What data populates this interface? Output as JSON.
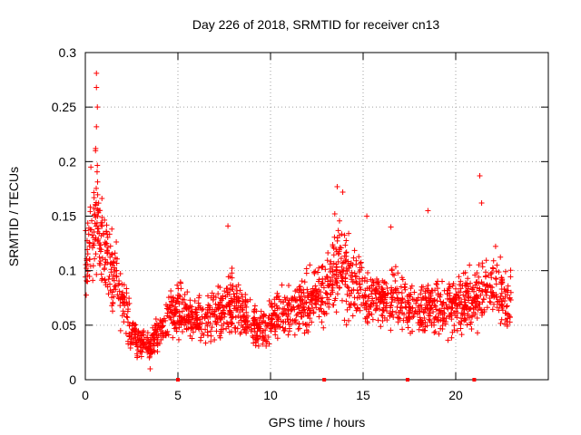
{
  "chart_data": {
    "type": "scatter",
    "title": "Day 226 of 2018, SRMTID for receiver cn13",
    "xlabel": "GPS time / hours",
    "ylabel": "SRMTID / TECUs",
    "xlim": [
      0,
      25
    ],
    "ylim": [
      0,
      0.3
    ],
    "xticks": [
      0,
      5,
      10,
      15,
      20
    ],
    "xtick_labels": [
      "0",
      "5",
      "10",
      "15",
      "20"
    ],
    "yticks": [
      0,
      0.05,
      0.1,
      0.15,
      0.2,
      0.25,
      0.3
    ],
    "ytick_labels": [
      "0",
      "0.05",
      "0.1",
      "0.15",
      "0.2",
      "0.25",
      "0.3"
    ],
    "grid": true,
    "marker": "+",
    "color": "#ff0000",
    "data_gaps_markers_x": [
      5.0,
      12.9,
      17.4,
      21.0
    ],
    "trend_profile": [
      {
        "x": 0.0,
        "y": 0.11
      },
      {
        "x": 0.3,
        "y": 0.13
      },
      {
        "x": 0.6,
        "y": 0.15
      },
      {
        "x": 1.0,
        "y": 0.12
      },
      {
        "x": 1.5,
        "y": 0.1
      },
      {
        "x": 2.0,
        "y": 0.07
      },
      {
        "x": 2.5,
        "y": 0.045
      },
      {
        "x": 3.0,
        "y": 0.035
      },
      {
        "x": 3.5,
        "y": 0.03
      },
      {
        "x": 4.0,
        "y": 0.045
      },
      {
        "x": 4.5,
        "y": 0.06
      },
      {
        "x": 5.0,
        "y": 0.065
      },
      {
        "x": 5.5,
        "y": 0.06
      },
      {
        "x": 6.0,
        "y": 0.055
      },
      {
        "x": 6.5,
        "y": 0.055
      },
      {
        "x": 7.0,
        "y": 0.06
      },
      {
        "x": 7.5,
        "y": 0.065
      },
      {
        "x": 8.0,
        "y": 0.07
      },
      {
        "x": 8.5,
        "y": 0.06
      },
      {
        "x": 9.0,
        "y": 0.05
      },
      {
        "x": 9.5,
        "y": 0.045
      },
      {
        "x": 10.0,
        "y": 0.055
      },
      {
        "x": 10.5,
        "y": 0.06
      },
      {
        "x": 11.0,
        "y": 0.06
      },
      {
        "x": 11.5,
        "y": 0.065
      },
      {
        "x": 12.0,
        "y": 0.07
      },
      {
        "x": 12.5,
        "y": 0.075
      },
      {
        "x": 13.0,
        "y": 0.085
      },
      {
        "x": 13.5,
        "y": 0.105
      },
      {
        "x": 14.0,
        "y": 0.1
      },
      {
        "x": 14.5,
        "y": 0.085
      },
      {
        "x": 15.0,
        "y": 0.075
      },
      {
        "x": 15.5,
        "y": 0.075
      },
      {
        "x": 16.0,
        "y": 0.07
      },
      {
        "x": 16.5,
        "y": 0.075
      },
      {
        "x": 17.0,
        "y": 0.07
      },
      {
        "x": 17.5,
        "y": 0.065
      },
      {
        "x": 18.0,
        "y": 0.065
      },
      {
        "x": 18.5,
        "y": 0.07
      },
      {
        "x": 19.0,
        "y": 0.07
      },
      {
        "x": 19.5,
        "y": 0.07
      },
      {
        "x": 20.0,
        "y": 0.065
      },
      {
        "x": 20.5,
        "y": 0.07
      },
      {
        "x": 21.0,
        "y": 0.075
      },
      {
        "x": 21.5,
        "y": 0.085
      },
      {
        "x": 22.0,
        "y": 0.09
      },
      {
        "x": 22.5,
        "y": 0.075
      },
      {
        "x": 23.0,
        "y": 0.07
      }
    ],
    "notable_points": [
      {
        "x": 0.6,
        "y": 0.281
      },
      {
        "x": 0.6,
        "y": 0.268
      },
      {
        "x": 0.65,
        "y": 0.25
      },
      {
        "x": 0.6,
        "y": 0.232
      },
      {
        "x": 0.55,
        "y": 0.21
      },
      {
        "x": 0.3,
        "y": 0.195
      },
      {
        "x": 13.6,
        "y": 0.177
      },
      {
        "x": 13.9,
        "y": 0.172
      },
      {
        "x": 21.3,
        "y": 0.187
      },
      {
        "x": 21.4,
        "y": 0.162
      },
      {
        "x": 18.5,
        "y": 0.155
      },
      {
        "x": 3.5,
        "y": 0.01
      },
      {
        "x": 7.7,
        "y": 0.141
      },
      {
        "x": 16.5,
        "y": 0.14
      },
      {
        "x": 15.2,
        "y": 0.15
      }
    ],
    "scatter_x_range": [
      0,
      23
    ],
    "scatter_point_count": 2000
  }
}
